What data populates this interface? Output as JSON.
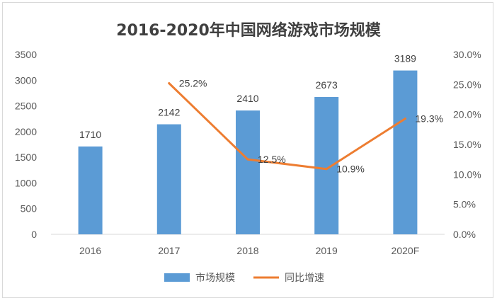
{
  "chart_data": {
    "type": "bar",
    "title": "2016-2020年中国网络游戏市场规模",
    "categories": [
      "2016",
      "2017",
      "2018",
      "2019",
      "2020F"
    ],
    "series": [
      {
        "name": "市场规模",
        "type": "bar",
        "axis": "left",
        "color": "#5b9bd5",
        "values": [
          1710,
          2142,
          2410,
          2673,
          3189
        ],
        "labels": [
          "1710",
          "2142",
          "2410",
          "2673",
          "3189"
        ]
      },
      {
        "name": "同比增速",
        "type": "line",
        "axis": "right",
        "color": "#ed7d31",
        "values": [
          null,
          25.2,
          12.5,
          10.9,
          19.3
        ],
        "labels": [
          "",
          "25.2%",
          "12.5%",
          "10.9%",
          "19.3%"
        ]
      }
    ],
    "y_left": {
      "min": 0,
      "max": 3500,
      "ticks": [
        "0",
        "500",
        "1000",
        "1500",
        "2000",
        "2500",
        "3000",
        "3500"
      ]
    },
    "y_right": {
      "min": 0,
      "max": 30,
      "ticks": [
        "0.0%",
        "5.0%",
        "10.0%",
        "15.0%",
        "20.0%",
        "25.0%",
        "30.0%"
      ]
    },
    "grid": false,
    "legend_position": "bottom"
  }
}
